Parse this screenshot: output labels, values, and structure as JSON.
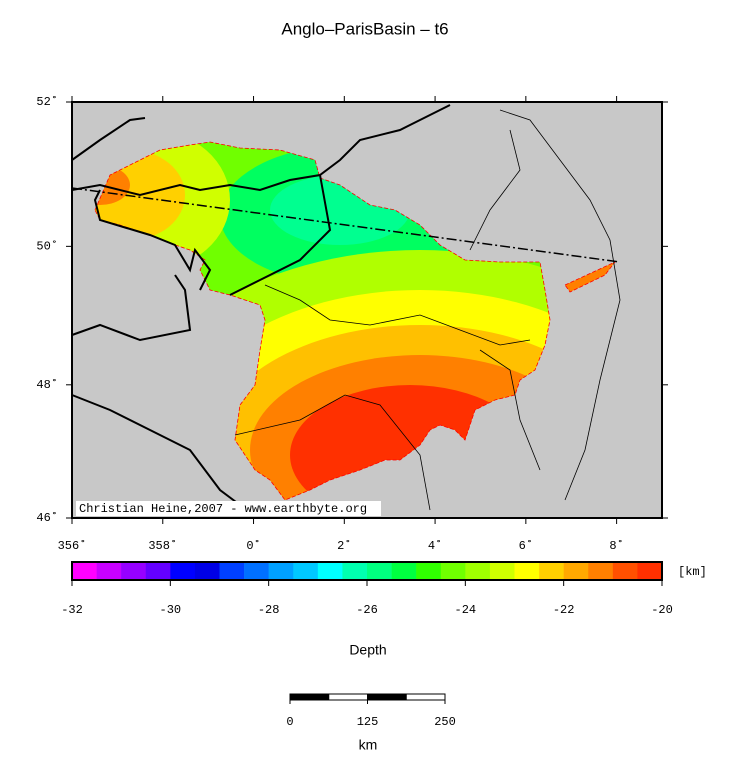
{
  "title": "Anglo–ParisBasin – t6",
  "map": {
    "xlim": [
      356,
      369
    ],
    "ylim": [
      46,
      52
    ],
    "xticks": [
      {
        "value": 356,
        "label": "356˚"
      },
      {
        "value": 358,
        "label": "358˚"
      },
      {
        "value": 360,
        "label": "0˚"
      },
      {
        "value": 362,
        "label": "2˚"
      },
      {
        "value": 364,
        "label": "4˚"
      },
      {
        "value": 366,
        "label": "6˚"
      },
      {
        "value": 368,
        "label": "8˚"
      }
    ],
    "yticks": [
      {
        "value": 46,
        "label": "46˚"
      },
      {
        "value": 48,
        "label": "48˚"
      },
      {
        "value": 50,
        "label": "50˚"
      },
      {
        "value": 52,
        "label": "52˚"
      }
    ],
    "credit": "Christian Heine,2007 - www.earthbyte.org"
  },
  "colorbar": {
    "label": "Depth",
    "unit": "[km]",
    "lim": [
      -32,
      -20
    ],
    "ticks": [
      -32,
      -30,
      -28,
      -26,
      -24,
      -22,
      -20
    ],
    "colors": [
      "#ff00ff",
      "#c800ff",
      "#9600ff",
      "#6400ff",
      "#0000ff",
      "#0000e6",
      "#0040ff",
      "#0070ff",
      "#00a0ff",
      "#00c8ff",
      "#00ffff",
      "#00ffb0",
      "#00ff80",
      "#00ff40",
      "#30ff00",
      "#70ff00",
      "#a0ff00",
      "#d0ff00",
      "#ffff00",
      "#ffd000",
      "#ffa800",
      "#ff8000",
      "#ff5000",
      "#ff3000"
    ]
  },
  "scale_bar": {
    "ticks": [
      0,
      125,
      250
    ],
    "unit": "km"
  }
}
